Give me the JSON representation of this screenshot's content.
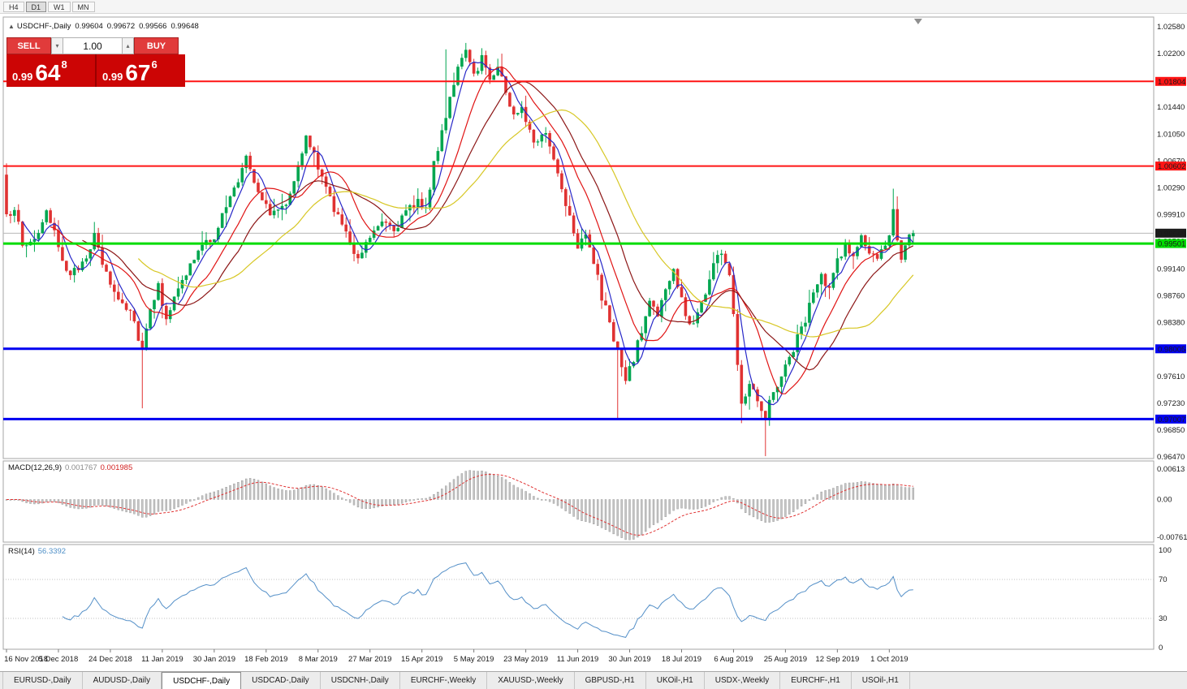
{
  "toolbar": {
    "buttons": [
      "H4",
      "D1",
      "W1",
      "MN"
    ],
    "active": "D1"
  },
  "icons": {
    "header_marker": "▲",
    "spinner_up": "▴",
    "spinner_down": "▾"
  },
  "chart_header": {
    "symbol": "USDCHF-,Daily",
    "open": "0.99604",
    "high": "0.99672",
    "low": "0.99566",
    "close": "0.99648"
  },
  "trade_panel": {
    "sell_label": "SELL",
    "buy_label": "BUY",
    "volume": "1.00",
    "sell_price": {
      "prefix": "0.99",
      "big": "64",
      "sup": "8"
    },
    "buy_price": {
      "prefix": "0.99",
      "big": "67",
      "sup": "6"
    }
  },
  "indicator_headers": {
    "macd": {
      "label": "MACD(12,26,9)",
      "value1": "0.001767",
      "value2": "0.001985"
    },
    "rsi": {
      "label": "RSI(14)",
      "value": "56.3392"
    }
  },
  "bottom_tabs": [
    {
      "label": "EURUSD-,Daily"
    },
    {
      "label": "AUDUSD-,Daily"
    },
    {
      "label": "USDCHF-,Daily"
    },
    {
      "label": "USDCAD-,Daily"
    },
    {
      "label": "USDCNH-,Daily"
    },
    {
      "label": "EURCHF-,Weekly"
    },
    {
      "label": "XAUUSD-,Weekly"
    },
    {
      "label": "GBPUSD-,H1"
    },
    {
      "label": "UKOil-,H1"
    },
    {
      "label": "USDX-,Weekly"
    },
    {
      "label": "EURCHF-,H1"
    },
    {
      "label": "USOil-,H1"
    }
  ],
  "active_tab_index": 2,
  "chart_data": {
    "type": "candlestick-with-indicators",
    "symbol": "USDCHF-",
    "timeframe": "Daily",
    "current": {
      "open": 0.99604,
      "high": 0.99672,
      "low": 0.99566,
      "close": 0.99648,
      "bid": 0.99648,
      "ask": 0.99676
    },
    "visible_price_range": [
      0.9647,
      1.0258
    ],
    "n_bars": 228,
    "candle_up_color": "#00a650",
    "candle_down_color": "#e03232",
    "price_path_anchors": [
      [
        0,
        0.9985
      ],
      [
        2,
        1.0005
      ],
      [
        4,
        0.9945
      ],
      [
        7,
        0.9958
      ],
      [
        10,
        0.999
      ],
      [
        13,
        0.9948
      ],
      [
        16,
        0.99
      ],
      [
        19,
        0.9925
      ],
      [
        22,
        0.9958
      ],
      [
        25,
        0.9905
      ],
      [
        28,
        0.9872
      ],
      [
        31,
        0.9858
      ],
      [
        34,
        0.98
      ],
      [
        36,
        0.9862
      ],
      [
        38,
        0.9888
      ],
      [
        40,
        0.9848
      ],
      [
        43,
        0.9882
      ],
      [
        46,
        0.992
      ],
      [
        49,
        0.9945
      ],
      [
        52,
        0.9962
      ],
      [
        55,
        1.0002
      ],
      [
        58,
        1.004
      ],
      [
        60,
        1.0078
      ],
      [
        62,
        1.0042
      ],
      [
        65,
        1.0002
      ],
      [
        67,
        0.9992
      ],
      [
        70,
        1.0012
      ],
      [
        73,
        1.0058
      ],
      [
        75,
        1.0098
      ],
      [
        77,
        1.0078
      ],
      [
        79,
        1.004
      ],
      [
        82,
        1.0002
      ],
      [
        85,
        0.9962
      ],
      [
        88,
        0.9932
      ],
      [
        91,
        0.9962
      ],
      [
        94,
        0.9988
      ],
      [
        97,
        0.9972
      ],
      [
        100,
        0.9992
      ],
      [
        103,
        1.0012
      ],
      [
        105,
        1.0002
      ],
      [
        107,
        1.006
      ],
      [
        109,
        1.011
      ],
      [
        111,
        1.016
      ],
      [
        113,
        1.02
      ],
      [
        115,
        1.0218
      ],
      [
        117,
        1.019
      ],
      [
        119,
        1.0215
      ],
      [
        121,
        1.0185
      ],
      [
        123,
        1.0205
      ],
      [
        125,
        1.0165
      ],
      [
        127,
        1.013
      ],
      [
        129,
        1.0148
      ],
      [
        131,
        1.0112
      ],
      [
        133,
        1.009
      ],
      [
        135,
        1.011
      ],
      [
        137,
        1.007
      ],
      [
        139,
        1.003
      ],
      [
        141,
        0.999
      ],
      [
        143,
        0.995
      ],
      [
        145,
        0.9968
      ],
      [
        147,
        0.9925
      ],
      [
        149,
        0.9872
      ],
      [
        151,
        0.984
      ],
      [
        153,
        0.9795
      ],
      [
        155,
        0.9752
      ],
      [
        157,
        0.9788
      ],
      [
        159,
        0.9825
      ],
      [
        161,
        0.9868
      ],
      [
        163,
        0.9852
      ],
      [
        165,
        0.9882
      ],
      [
        167,
        0.9912
      ],
      [
        169,
        0.9868
      ],
      [
        171,
        0.9832
      ],
      [
        173,
        0.9852
      ],
      [
        175,
        0.9882
      ],
      [
        177,
        0.9922
      ],
      [
        179,
        0.994
      ],
      [
        181,
        0.9905
      ],
      [
        182,
        0.9845
      ],
      [
        183,
        0.9782
      ],
      [
        184,
        0.9725
      ],
      [
        186,
        0.9755
      ],
      [
        188,
        0.9732
      ],
      [
        190,
        0.9705
      ],
      [
        192,
        0.9742
      ],
      [
        194,
        0.9762
      ],
      [
        196,
        0.9788
      ],
      [
        198,
        0.9815
      ],
      [
        200,
        0.9845
      ],
      [
        202,
        0.9878
      ],
      [
        204,
        0.9902
      ],
      [
        206,
        0.9882
      ],
      [
        208,
        0.9928
      ],
      [
        210,
        0.9948
      ],
      [
        212,
        0.993
      ],
      [
        214,
        0.9958
      ],
      [
        216,
        0.9938
      ],
      [
        218,
        0.9922
      ],
      [
        220,
        0.9948
      ],
      [
        221,
        0.9968
      ],
      [
        222,
        0.9998
      ],
      [
        223,
        0.9962
      ],
      [
        224,
        0.9932
      ],
      [
        225,
        0.9948
      ],
      [
        226,
        0.9958
      ],
      [
        227,
        0.99648
      ]
    ],
    "special_bars": {
      "0": {
        "o": 1.0048,
        "h": 1.006
      },
      "34": {
        "l": 0.9716
      },
      "110": {
        "h": 1.0226
      },
      "115": {
        "h": 1.0226
      },
      "153": {
        "l": 0.97
      },
      "184": {
        "l": 0.9695
      },
      "190": {
        "l": 0.9648
      },
      "222": {
        "h": 1.0028
      },
      "227": {
        "o": 0.99604,
        "h": 0.99672,
        "l": 0.99566
      }
    },
    "moving_averages": [
      {
        "period": 5,
        "color": "#2828c8"
      },
      {
        "period": 12,
        "color": "#e01414"
      },
      {
        "period": 20,
        "color": "#8c1616"
      },
      {
        "period": 34,
        "color": "#d7c724"
      }
    ],
    "hlines": [
      {
        "price": 1.01804,
        "color": "#ff1414",
        "width": 2
      },
      {
        "price": 1.00602,
        "color": "#ff1414",
        "width": 2
      },
      {
        "price": 0.99501,
        "color": "#00dc00",
        "width": 3
      },
      {
        "price": 0.98005,
        "color": "#0000f0",
        "width": 3
      },
      {
        "price": 0.97007,
        "color": "#0000f0",
        "width": 3
      }
    ],
    "current_price_line": {
      "price": 0.99648,
      "badge_color": "#1c1c1c",
      "line_color": "#b8b8b8"
    },
    "price_axis_ticks": [
      1.0258,
      1.022,
      1.0144,
      1.0105,
      1.0067,
      1.0029,
      0.9991,
      0.9953,
      0.9914,
      0.9876,
      0.9838,
      0.9761,
      0.9723,
      0.9685,
      0.9647
    ],
    "date_axis": [
      {
        "bar": 0,
        "label": "16 Nov 2018"
      },
      {
        "bar": 13,
        "label": "5 Dec 2018"
      },
      {
        "bar": 26,
        "label": "24 Dec 2018"
      },
      {
        "bar": 39,
        "label": "11 Jan 2019"
      },
      {
        "bar": 52,
        "label": "30 Jan 2019"
      },
      {
        "bar": 65,
        "label": "18 Feb 2019"
      },
      {
        "bar": 78,
        "label": "8 Mar 2019"
      },
      {
        "bar": 91,
        "label": "27 Mar 2019"
      },
      {
        "bar": 104,
        "label": "15 Apr 2019"
      },
      {
        "bar": 117,
        "label": "5 May 2019"
      },
      {
        "bar": 130,
        "label": "23 May 2019"
      },
      {
        "bar": 143,
        "label": "11 Jun 2019"
      },
      {
        "bar": 156,
        "label": "30 Jun 2019"
      },
      {
        "bar": 169,
        "label": "18 Jul 2019"
      },
      {
        "bar": 182,
        "label": "6 Aug 2019"
      },
      {
        "bar": 195,
        "label": "25 Aug 2019"
      },
      {
        "bar": 208,
        "label": "12 Sep 2019"
      },
      {
        "bar": 221,
        "label": "1 Oct 2019"
      }
    ],
    "macd": {
      "params": [
        12,
        26,
        9
      ],
      "current_hist": 0.001767,
      "current_signal": 0.001985,
      "axis_labels": [
        {
          "v": 0.00613,
          "label": "0.00613"
        },
        {
          "v": 0,
          "label": "0.00"
        },
        {
          "v": -0.00761,
          "label": "-0.00761"
        }
      ],
      "hist_color": "#c6c6c6",
      "hist_stroke": "#8e8e8e",
      "signal_color": "#e03232"
    },
    "rsi": {
      "period": 14,
      "current": 56.3392,
      "levels": [
        70,
        30
      ],
      "axis_labels": [
        {
          "v": 100,
          "label": "100"
        },
        {
          "v": 70,
          "label": "70"
        },
        {
          "v": 30,
          "label": "30"
        },
        {
          "v": 0,
          "label": "0"
        }
      ],
      "color": "#5590c8"
    }
  }
}
